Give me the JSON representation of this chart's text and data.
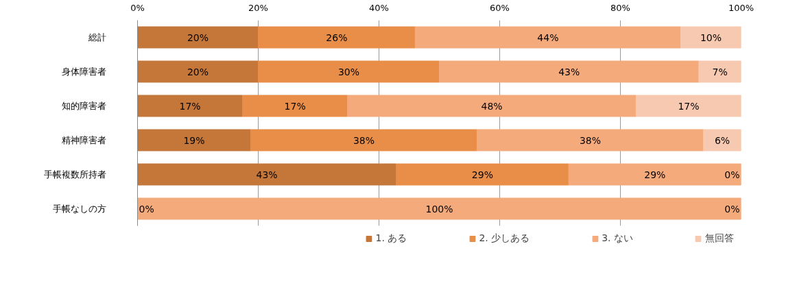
{
  "chart_data": {
    "type": "bar",
    "orientation": "horizontal",
    "stacked": true,
    "categories": [
      "総計",
      "身体障害者",
      "知的障害者",
      "精神障害者",
      "手帳複数所持者",
      "手帳なしの方"
    ],
    "series": [
      {
        "name": "1. ある",
        "color": "#c5773a",
        "values": [
          20,
          20,
          17.4,
          18.75,
          42.86,
          0
        ],
        "value_labels": [
          "20%",
          "20%",
          "17%",
          "19%",
          "43%",
          "0%"
        ]
      },
      {
        "name": "2. 少しある",
        "color": "#e98e48",
        "values": [
          26,
          30,
          17.4,
          37.5,
          28.57,
          0
        ],
        "value_labels": [
          "26%",
          "30%",
          "17%",
          "38%",
          "29%",
          null
        ]
      },
      {
        "name": "3. ない",
        "color": "#f5aa7b",
        "values": [
          44,
          43,
          47.8,
          37.5,
          28.57,
          100
        ],
        "value_labels": [
          "44%",
          "43%",
          "48%",
          "38%",
          "29%",
          "100%"
        ]
      },
      {
        "name": "無回答",
        "color": "#f8c9b1",
        "values": [
          10,
          7,
          17.4,
          6.25,
          0,
          0
        ],
        "value_labels": [
          "10%",
          "7%",
          "17%",
          "6%",
          "0%",
          "0%"
        ]
      }
    ],
    "xlim": [
      0,
      100
    ],
    "xticks": [
      {
        "value": 0,
        "label": "0%"
      },
      {
        "value": 20,
        "label": "20%"
      },
      {
        "value": 40,
        "label": "40%"
      },
      {
        "value": 60,
        "label": "60%"
      },
      {
        "value": 80,
        "label": "80%"
      },
      {
        "value": 100,
        "label": "100%"
      }
    ],
    "grid": "x",
    "legend": "bottom"
  }
}
